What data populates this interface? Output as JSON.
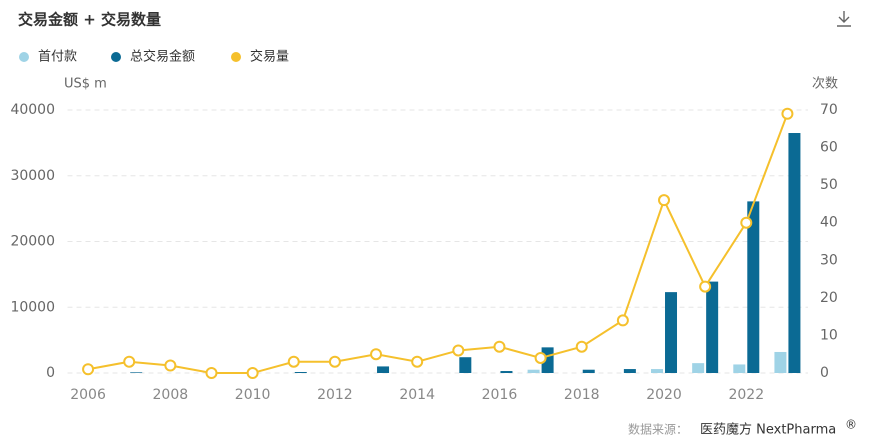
{
  "chart_data": {
    "type": "bar_line",
    "title": "交易金额 + 交易数量",
    "categories": [
      "2006",
      null,
      "2008",
      null,
      "2010",
      null,
      "2012",
      null,
      "2014",
      null,
      "2016",
      null,
      "2018",
      null,
      "2020",
      null,
      "2022",
      null
    ],
    "series": [
      {
        "name": "首付款",
        "type": "bar",
        "color": "#9fd3e6",
        "values": [
          0,
          0,
          0,
          0,
          0,
          0,
          0,
          0,
          0,
          0,
          0,
          500,
          0,
          0,
          600,
          1500,
          1300,
          3200
        ]
      },
      {
        "name": "总交易金额",
        "type": "bar",
        "color": "#0b6a94",
        "values": [
          0,
          100,
          0,
          0,
          0,
          150,
          0,
          1000,
          0,
          2400,
          300,
          3900,
          500,
          600,
          12300,
          13900,
          26100,
          36500
        ]
      },
      {
        "name": "交易量",
        "type": "line",
        "axis": "y2",
        "color": "#f5c02c",
        "values": [
          1,
          3,
          2,
          0,
          0,
          3,
          3,
          5,
          3,
          6,
          7,
          4,
          7,
          14,
          46,
          23,
          40,
          69
        ]
      }
    ],
    "ylabel": "US$ m",
    "y2label": "次数",
    "ylim": [
      0,
      40000
    ],
    "yticks": [
      0,
      10000,
      20000,
      30000,
      40000
    ],
    "y2lim": [
      0,
      70
    ],
    "y2ticks": [
      0,
      10,
      20,
      30,
      40,
      50,
      60,
      70
    ],
    "grid": true,
    "legend": "top-left",
    "source": "数据来源：",
    "source_brand": "医药魔方 NextPharma",
    "source_mark": "®"
  }
}
